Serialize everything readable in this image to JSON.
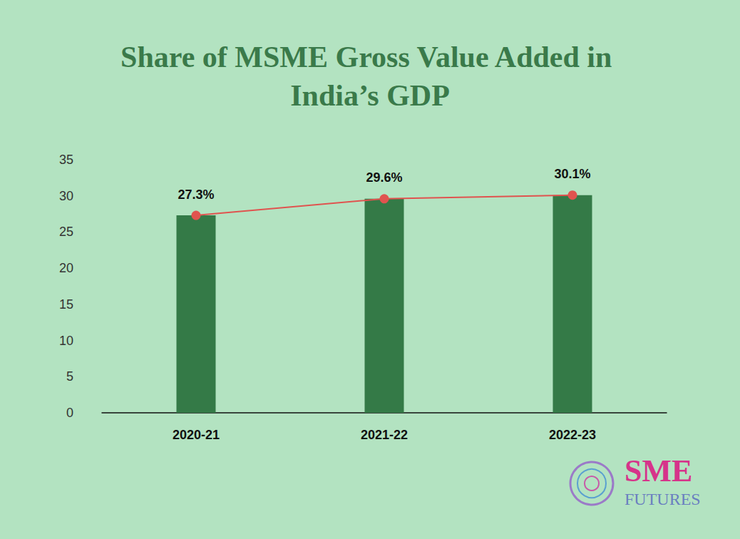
{
  "chart_data": {
    "type": "bar",
    "title": "Share of MSME Gross Value Added in India’s GDP",
    "categories": [
      "2020-21",
      "2021-22",
      "2022-23"
    ],
    "series": [
      {
        "type": "bar",
        "color": "#347a47",
        "values": [
          27.3,
          29.6,
          30.1
        ]
      },
      {
        "type": "line",
        "color": "#e0534f",
        "marker": "circle",
        "values": [
          27.3,
          29.6,
          30.1
        ],
        "value_labels": [
          "27.3%",
          "29.6%",
          "30.1%"
        ]
      }
    ],
    "ylim": [
      0,
      35
    ],
    "yticks": [
      0,
      5,
      10,
      15,
      20,
      25,
      30,
      35
    ],
    "grid": false,
    "data_labels": true,
    "annotations": [
      "SME",
      "FUTURES"
    ]
  }
}
